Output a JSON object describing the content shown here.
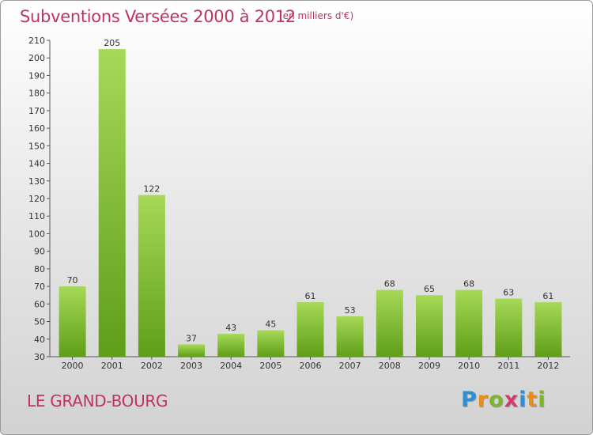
{
  "header": {
    "title": "Subventions Versées 2000 à 2012",
    "unit_note": "(en milliers d'€)"
  },
  "footer": {
    "commune": "LE GRAND-BOURG",
    "logo_letters": [
      "P",
      "r",
      "o",
      "x",
      "i",
      "t",
      "i"
    ],
    "logo_colors": [
      "#2f8fd0",
      "#e88c1a",
      "#7db52a",
      "#d23c6b",
      "#2f8fd0",
      "#e88c1a",
      "#7db52a"
    ]
  },
  "colors": {
    "bar_light": "#a6d957",
    "bar_dark": "#5f9e18",
    "title": "#c0335d",
    "axis": "#333333"
  },
  "chart_data": {
    "type": "bar",
    "title": "Subventions Versées 2000 à 2012",
    "subtitle": "(en milliers d'€)",
    "xlabel": "",
    "ylabel": "",
    "categories": [
      "2000",
      "2001",
      "2002",
      "2003",
      "2004",
      "2005",
      "2006",
      "2007",
      "2008",
      "2009",
      "2010",
      "2011",
      "2012"
    ],
    "values": [
      70,
      205,
      122,
      37,
      43,
      45,
      61,
      53,
      68,
      65,
      68,
      63,
      61
    ],
    "ylim": [
      30,
      210
    ],
    "yticks": [
      30,
      40,
      50,
      60,
      70,
      80,
      90,
      100,
      110,
      120,
      130,
      140,
      150,
      160,
      170,
      180,
      190,
      200,
      210
    ],
    "grid": false,
    "data_labels": true
  }
}
